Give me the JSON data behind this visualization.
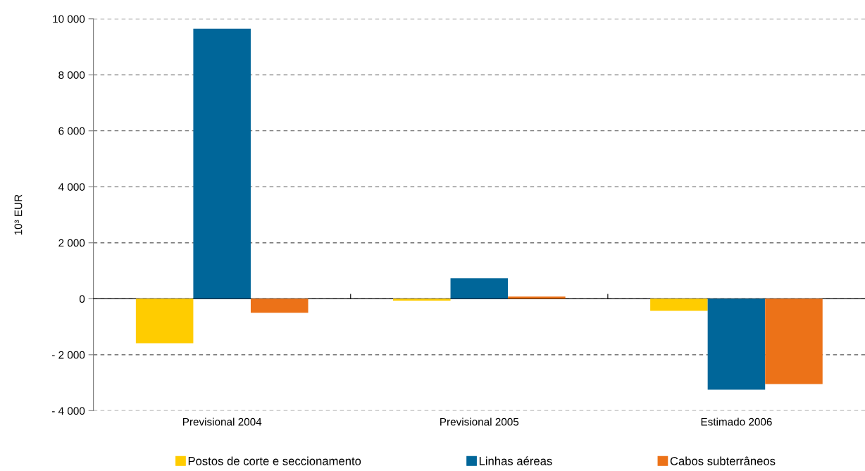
{
  "chart_data": {
    "type": "bar",
    "ylabel": "10³ EUR",
    "categories": [
      "Previsional 2004",
      "Previsional 2005",
      "Estimado 2006"
    ],
    "series": [
      {
        "name": "Postos de corte e seccionamento",
        "color": "#ffcc00",
        "values": [
          -1590,
          -70,
          -430
        ]
      },
      {
        "name": "Linhas aéreas",
        "color": "#006699",
        "values": [
          9650,
          730,
          -3250
        ]
      },
      {
        "name": "Cabos subterrâneos",
        "color": "#ec7218",
        "values": [
          -500,
          80,
          -3050
        ]
      }
    ],
    "ylim": [
      -4000,
      10000
    ],
    "yticks": [
      {
        "value": -4000,
        "label": "- 4 000"
      },
      {
        "value": -2000,
        "label": "- 2 000"
      },
      0,
      {
        "value": 2000,
        "label": "2 000"
      },
      {
        "value": 4000,
        "label": "4 000"
      },
      {
        "value": 6000,
        "label": "6 000"
      },
      {
        "value": 8000,
        "label": "8 000"
      },
      {
        "value": 10000,
        "label": "10 000"
      }
    ],
    "grid": "y",
    "legend": "bottom"
  }
}
